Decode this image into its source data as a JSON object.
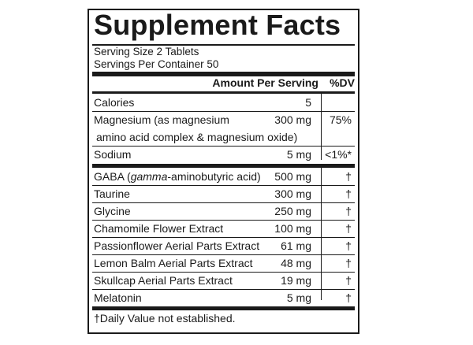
{
  "panel": {
    "title": "Supplement Facts",
    "serving_size": "Serving Size 2 Tablets",
    "servings_per_container": "Servings Per Container 50",
    "header_amount": "Amount Per Serving",
    "header_dv": "%DV"
  },
  "rows": [
    {
      "name": "Calories",
      "amount": "5",
      "dv": ""
    },
    {
      "name": "Magnesium (as magnesium",
      "amount": "300 mg",
      "dv": "75%"
    },
    {
      "name": "amino acid complex & magnesium oxide)",
      "amount": "",
      "dv": ""
    },
    {
      "name": "Sodium",
      "amount": "5 mg",
      "dv": "<1%*"
    },
    {
      "name_pre": "GABA (",
      "name_italic": "gamma",
      "name_post": "-aminobutyric acid)",
      "amount": "500 mg",
      "dv": "†"
    },
    {
      "name": "Taurine",
      "amount": "300 mg",
      "dv": "†"
    },
    {
      "name": "Glycine",
      "amount": "250 mg",
      "dv": "†"
    },
    {
      "name": "Chamomile Flower Extract",
      "amount": "100 mg",
      "dv": "†"
    },
    {
      "name": "Passionflower Aerial Parts Extract",
      "amount": "61 mg",
      "dv": "†"
    },
    {
      "name": "Lemon Balm Aerial Parts Extract",
      "amount": "48 mg",
      "dv": "†"
    },
    {
      "name": "Skullcap Aerial Parts Extract",
      "amount": "19 mg",
      "dv": "†"
    },
    {
      "name": "Melatonin",
      "amount": "5 mg",
      "dv": "†"
    }
  ],
  "footnote": "†Daily Value not established."
}
